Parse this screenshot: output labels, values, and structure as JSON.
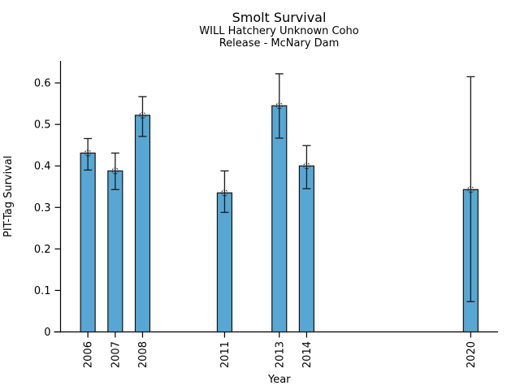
{
  "chart_data": {
    "type": "bar",
    "title": "Smolt Survival",
    "subtitle1": "WILL Hatchery Unknown Coho",
    "subtitle2": "Release - McNary Dam",
    "xlabel": "Year",
    "ylabel": "PIT-Tag Survival",
    "categories": [
      "2006",
      "2007",
      "2008",
      "2011",
      "2013",
      "2014",
      "2020"
    ],
    "values": [
      0.431,
      0.388,
      0.522,
      0.335,
      0.545,
      0.4,
      0.343
    ],
    "error_low": [
      0.39,
      0.343,
      0.471,
      0.288,
      0.467,
      0.345,
      0.073
    ],
    "error_high": [
      0.466,
      0.431,
      0.567,
      0.388,
      0.622,
      0.449,
      0.615
    ],
    "yticks": [
      0,
      0.1,
      0.2,
      0.3,
      0.4,
      0.5,
      0.6
    ],
    "ytick_labels": [
      "0",
      "0.1",
      "0.2",
      "0.3",
      "0.4",
      "0.5",
      "0.6"
    ],
    "xlim": [
      2005,
      2021
    ],
    "ylim": [
      0,
      0.653
    ],
    "grid": false,
    "legend": false,
    "bar_color": "#57A7D4",
    "bar_edge_color": "#141414",
    "errorbar_color": "#1b1b1b",
    "marker": "open-circle",
    "marker_color": "#3a3a3a",
    "axis_color": "#000000"
  }
}
